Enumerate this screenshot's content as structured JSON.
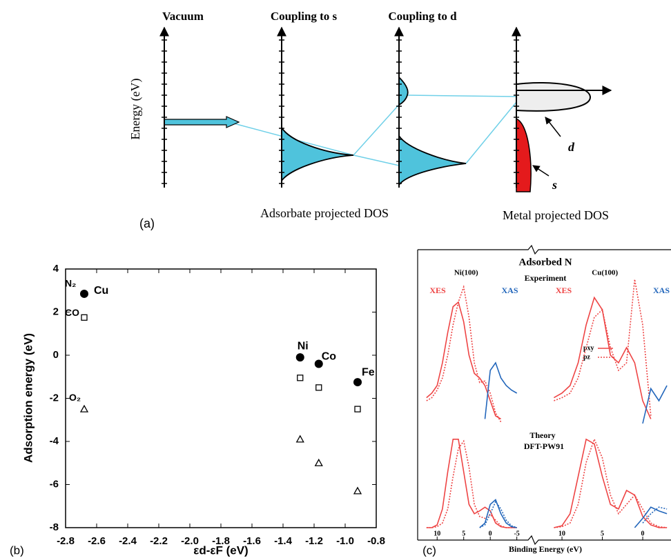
{
  "diagram": {
    "label": "(a)",
    "columns": [
      "Vacuum",
      "Coupling to s",
      "Coupling to d"
    ],
    "y_label": "Energy (eV)",
    "captions": [
      "Adsorbate projected DOS",
      "Metal projected DOS"
    ],
    "lobe_labels": [
      "d",
      "s"
    ]
  },
  "panel_c": {
    "label": "(c)",
    "title": "Adsorbed N",
    "groups": [
      "Experiment",
      "Theory"
    ],
    "theory_subtitle": "DFT-PW91",
    "x_label": "Binding Energy (eV)"
  },
  "chart_data": [
    {
      "type": "scatter",
      "label": "(b)",
      "x_label": "εd-εF (eV)",
      "y_label": "Adsorption energy (eV)",
      "xlim": [
        -2.8,
        -0.8
      ],
      "ylim": [
        -8,
        4
      ],
      "xticks": [
        -2.8,
        -2.6,
        -2.4,
        -2.2,
        {
          "value": -2,
          "label": "-2.0"
        },
        -1.8,
        -1.6,
        -1.4,
        -1.2,
        {
          "value": -1,
          "label": "-1.0"
        },
        -0.8
      ],
      "yticks": [
        -8,
        -6,
        -4,
        -2,
        0,
        2,
        4
      ],
      "grid": false,
      "x": [
        -2.68,
        -1.29,
        -1.17,
        -0.92
      ],
      "point_labels": [
        "Cu",
        "Ni",
        "Co",
        "Fe"
      ],
      "series": [
        {
          "name": "N₂",
          "marker": "circle-filled",
          "color": "#000000",
          "values": [
            2.85,
            -0.1,
            -0.4,
            -1.25
          ]
        },
        {
          "name": "CO",
          "marker": "square-open",
          "color": "#000000",
          "values": [
            1.75,
            -1.05,
            -1.5,
            -2.5
          ]
        },
        {
          "name": "O₂",
          "marker": "triangle-open",
          "color": "#000000",
          "values": [
            -2.5,
            -3.9,
            -5.0,
            -6.3
          ]
        }
      ]
    },
    {
      "type": "line",
      "title": "Ni(100)",
      "annotations": [
        "XES",
        "XAS"
      ],
      "xlim": [
        12.5,
        -5.5
      ],
      "xticks": [
        10,
        5,
        0,
        -5
      ],
      "ylim": [
        0,
        100
      ],
      "x": [
        12,
        11,
        10,
        9,
        8,
        7,
        6,
        5,
        4,
        3,
        2,
        1,
        0,
        -1,
        -2,
        -3,
        -4,
        -5
      ],
      "series": [
        {
          "name": "pxy",
          "group": 0,
          "color": "#ee4444",
          "dotted": false,
          "values": [
            22,
            25,
            30,
            45,
            65,
            82,
            85,
            72,
            50,
            38,
            35,
            30,
            20,
            10,
            8,
            null,
            null,
            null
          ]
        },
        {
          "name": "pz",
          "group": 0,
          "color": "#ee4444",
          "dotted": true,
          "values": [
            20,
            22,
            27,
            35,
            50,
            70,
            85,
            95,
            75,
            45,
            32,
            33,
            25,
            12,
            6,
            null,
            null,
            null
          ]
        },
        {
          "name": "XAS",
          "group": 0,
          "color": "#2266bb",
          "dotted": false,
          "values": [
            null,
            null,
            null,
            null,
            null,
            null,
            null,
            null,
            null,
            null,
            null,
            8,
            40,
            45,
            35,
            30,
            27,
            25
          ]
        },
        {
          "name": "pxy",
          "group": 1,
          "color": "#ee4444",
          "dotted": false,
          "values": [
            0,
            0,
            3,
            20,
            60,
            95,
            95,
            60,
            25,
            15,
            18,
            22,
            18,
            5,
            1,
            0,
            0,
            0
          ]
        },
        {
          "name": "pz",
          "group": 1,
          "color": "#ee4444",
          "dotted": true,
          "values": [
            0,
            0,
            1,
            5,
            20,
            55,
            85,
            93,
            65,
            25,
            12,
            10,
            14,
            8,
            2,
            0,
            0,
            0
          ]
        },
        {
          "name": "pxy",
          "group": 1,
          "color": "#2266bb",
          "dotted": false,
          "values": [
            null,
            null,
            null,
            null,
            null,
            null,
            null,
            null,
            null,
            null,
            0,
            5,
            25,
            30,
            15,
            5,
            1,
            0
          ]
        },
        {
          "name": "pz",
          "group": 1,
          "color": "#2266bb",
          "dotted": true,
          "values": [
            null,
            null,
            null,
            null,
            null,
            null,
            null,
            null,
            null,
            null,
            0,
            3,
            15,
            28,
            20,
            8,
            2,
            0
          ]
        }
      ]
    },
    {
      "type": "line",
      "title": "Cu(100)",
      "annotations": [
        "XES",
        "XAS"
      ],
      "xlim": [
        11.5,
        -3.5
      ],
      "xticks": [
        10,
        5,
        0
      ],
      "ylim": [
        0,
        100
      ],
      "x": [
        11,
        10,
        9,
        8,
        7,
        6,
        5,
        4,
        3,
        2,
        1,
        0,
        -1,
        -2,
        -3
      ],
      "series": [
        {
          "name": "pxy",
          "group": 0,
          "color": "#ee4444",
          "dotted": false,
          "values": [
            22,
            25,
            30,
            45,
            70,
            88,
            80,
            50,
            45,
            55,
            45,
            20,
            8,
            null,
            null
          ]
        },
        {
          "name": "pz",
          "group": 0,
          "color": "#ee4444",
          "dotted": true,
          "values": [
            20,
            22,
            25,
            35,
            55,
            75,
            80,
            55,
            40,
            45,
            100,
            70,
            10,
            null,
            null
          ]
        },
        {
          "name": "XAS",
          "group": 0,
          "color": "#2266bb",
          "dotted": false,
          "values": [
            null,
            null,
            null,
            null,
            null,
            null,
            null,
            null,
            null,
            null,
            null,
            5,
            28,
            20,
            30
          ]
        },
        {
          "name": "pxy",
          "group": 1,
          "color": "#ee4444",
          "dotted": false,
          "values": [
            0,
            2,
            15,
            55,
            95,
            90,
            55,
            25,
            20,
            40,
            35,
            12,
            3,
            0,
            0
          ]
        },
        {
          "name": "pz",
          "group": 1,
          "color": "#ee4444",
          "dotted": true,
          "values": [
            0,
            1,
            5,
            25,
            70,
            95,
            75,
            35,
            15,
            25,
            35,
            20,
            5,
            1,
            0
          ]
        },
        {
          "name": "pxy",
          "group": 1,
          "color": "#2266bb",
          "dotted": false,
          "values": [
            null,
            null,
            null,
            null,
            null,
            null,
            null,
            null,
            null,
            null,
            0,
            10,
            22,
            18,
            15
          ]
        },
        {
          "name": "pz",
          "group": 1,
          "color": "#2266bb",
          "dotted": true,
          "values": [
            null,
            null,
            null,
            null,
            null,
            null,
            null,
            null,
            null,
            null,
            null,
            5,
            15,
            22,
            20
          ]
        }
      ]
    }
  ]
}
